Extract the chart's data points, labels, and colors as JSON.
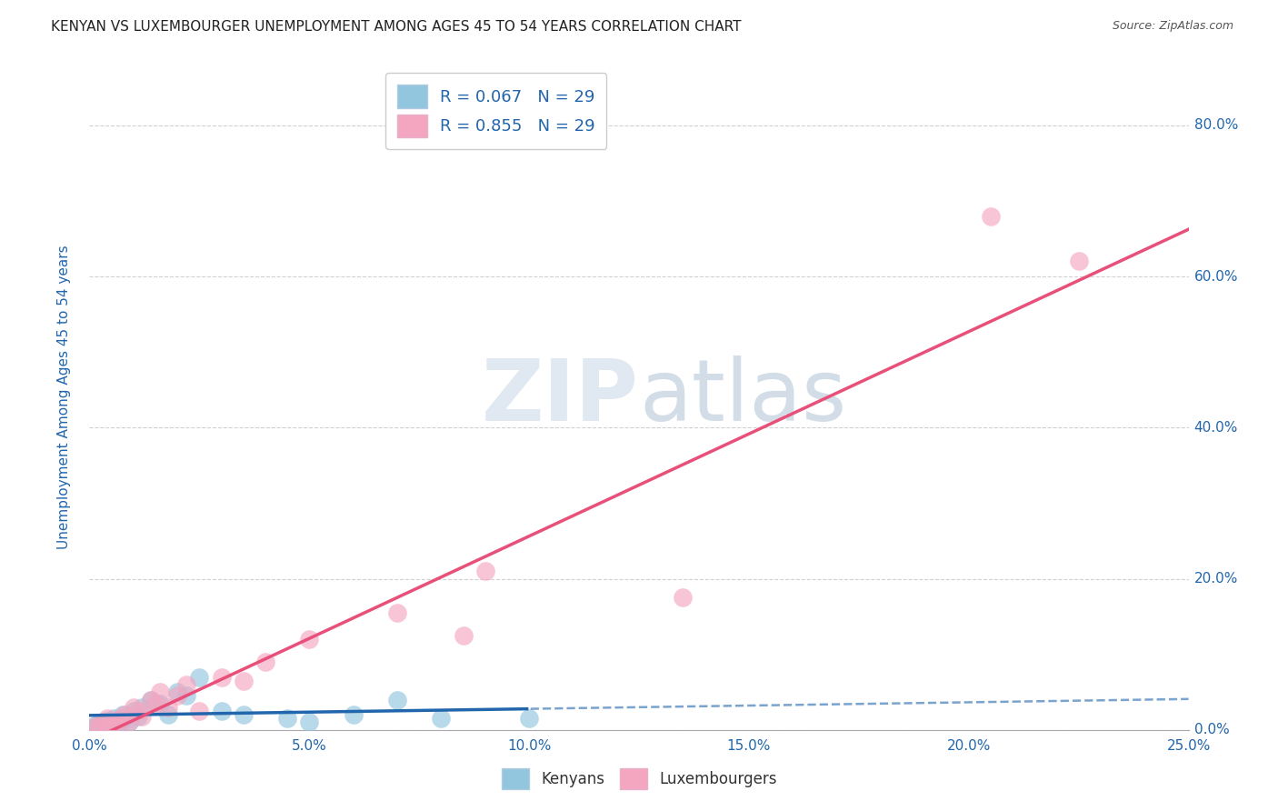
{
  "title": "KENYAN VS LUXEMBOURGER UNEMPLOYMENT AMONG AGES 45 TO 54 YEARS CORRELATION CHART",
  "source": "Source: ZipAtlas.com",
  "ylabel": "Unemployment Among Ages 45 to 54 years",
  "xlim": [
    0.0,
    25.0
  ],
  "ylim": [
    0.0,
    88.0
  ],
  "kenyan_R": 0.067,
  "kenyan_N": 29,
  "luxembourger_R": 0.855,
  "luxembourger_N": 29,
  "kenyan_color": "#92c5de",
  "luxembourger_color": "#f4a6c0",
  "kenyan_line_color": "#2166ac",
  "luxembourger_line_color": "#e8507a",
  "kenyan_x": [
    0.1,
    0.2,
    0.3,
    0.35,
    0.4,
    0.5,
    0.55,
    0.6,
    0.7,
    0.75,
    0.8,
    0.9,
    1.0,
    1.1,
    1.2,
    1.4,
    1.6,
    1.8,
    2.0,
    2.2,
    2.5,
    3.0,
    3.5,
    4.5,
    5.0,
    6.0,
    7.0,
    8.0,
    10.0
  ],
  "kenyan_y": [
    0.5,
    0.8,
    1.0,
    0.5,
    1.2,
    0.8,
    1.5,
    0.5,
    1.0,
    2.0,
    1.5,
    1.0,
    2.5,
    1.8,
    3.0,
    4.0,
    3.5,
    2.0,
    5.0,
    4.5,
    7.0,
    2.5,
    2.0,
    1.5,
    1.0,
    2.0,
    4.0,
    1.5,
    1.5
  ],
  "luxembourger_x": [
    0.1,
    0.2,
    0.3,
    0.4,
    0.5,
    0.6,
    0.7,
    0.8,
    0.9,
    1.0,
    1.1,
    1.2,
    1.4,
    1.5,
    1.6,
    1.8,
    2.0,
    2.2,
    2.5,
    3.0,
    3.5,
    4.0,
    5.0,
    7.0,
    8.5,
    9.0,
    13.5,
    20.5,
    22.5
  ],
  "luxembourger_y": [
    0.5,
    0.3,
    1.0,
    1.5,
    0.8,
    0.5,
    1.5,
    2.0,
    1.0,
    3.0,
    2.5,
    1.8,
    4.0,
    3.5,
    5.0,
    3.0,
    4.5,
    6.0,
    2.5,
    7.0,
    6.5,
    9.0,
    12.0,
    15.5,
    12.5,
    21.0,
    17.5,
    68.0,
    62.0
  ],
  "background_color": "#ffffff",
  "grid_color": "#cccccc",
  "title_color": "#222222",
  "axis_tick_color": "#2166ac",
  "ylabel_color": "#2166ac",
  "right_tick_vals": [
    0,
    20,
    40,
    60,
    80
  ],
  "right_tick_labels": [
    "0.0%",
    "20.0%",
    "40.0%",
    "60.0%",
    "80.0%"
  ],
  "x_tick_vals": [
    0,
    5,
    10,
    15,
    20,
    25
  ],
  "x_tick_labels": [
    "0.0%",
    "5.0%",
    "10.0%",
    "15.0%",
    "20.0%",
    "25.0%"
  ]
}
